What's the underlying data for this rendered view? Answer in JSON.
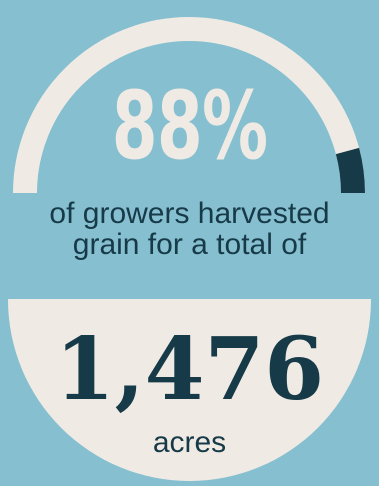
{
  "stat": {
    "percent": "88%",
    "percent_value": 88,
    "caption": "of growers harvested grain for a total of",
    "number": "1,476",
    "unit": "acres"
  },
  "colors": {
    "background": "#86bfcf",
    "cream": "#efebe4",
    "dark": "#173a48"
  }
}
